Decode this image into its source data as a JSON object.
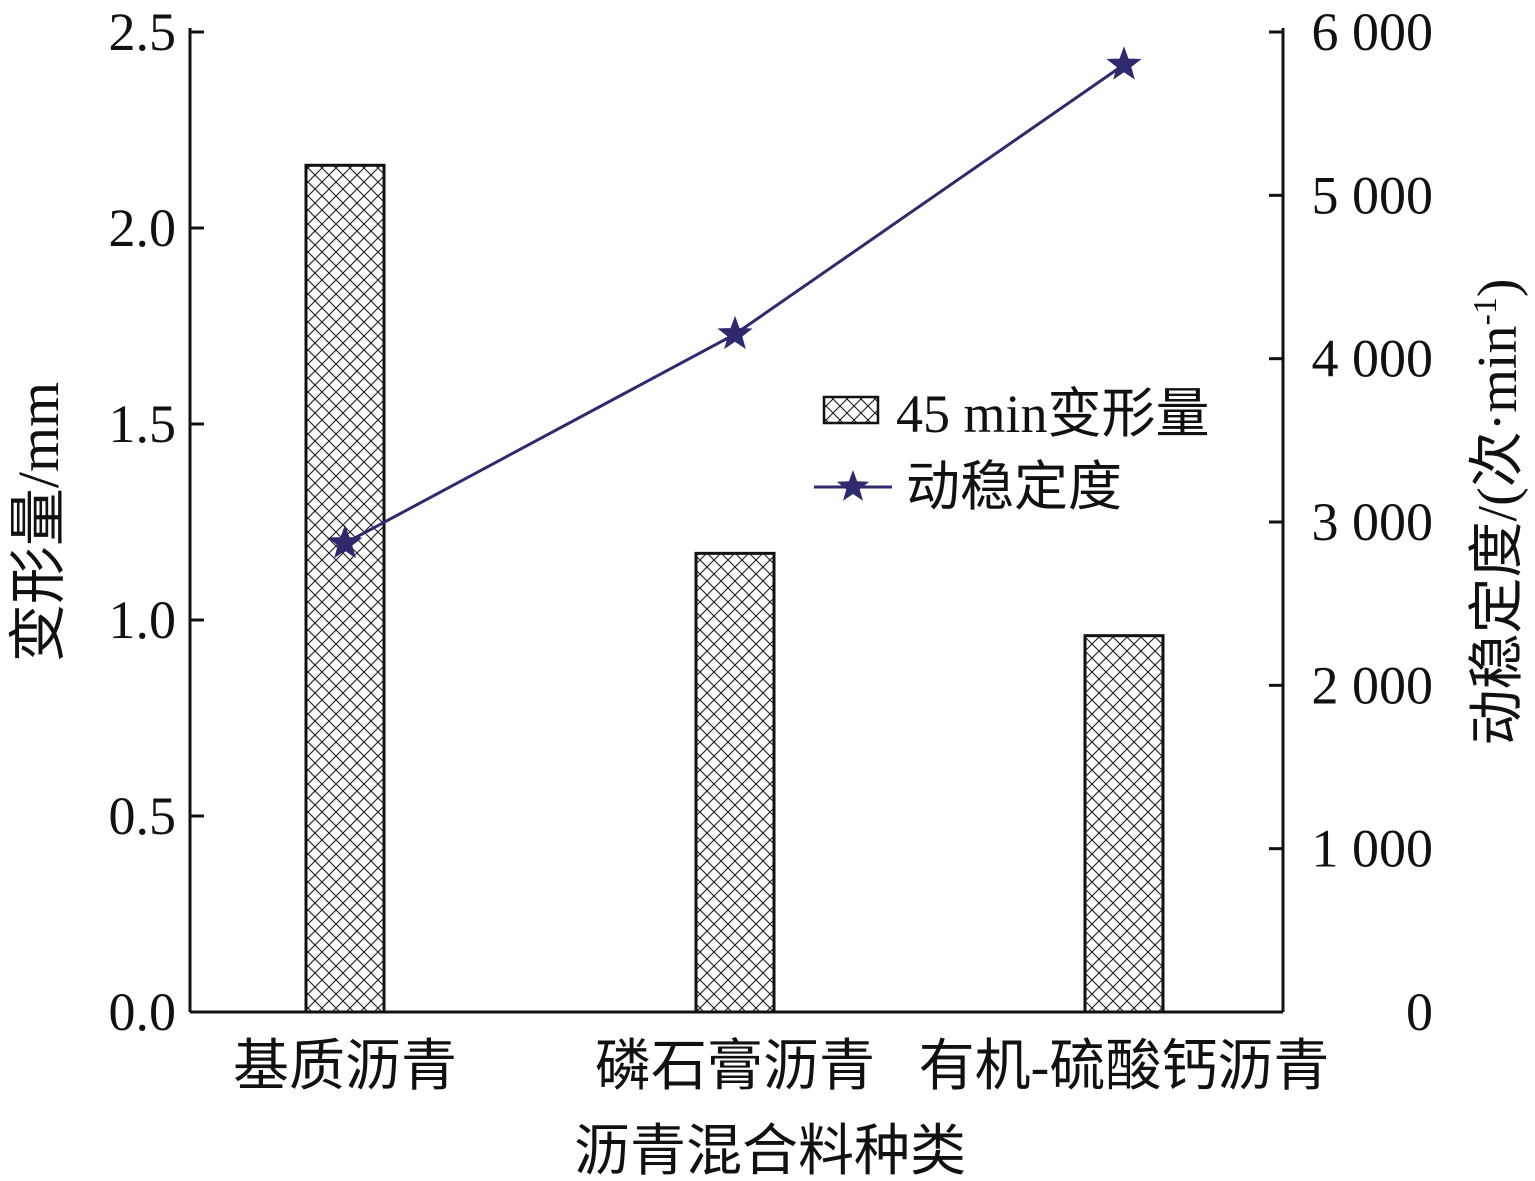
{
  "chart_data": {
    "type": "bar",
    "categories": [
      "基质沥青",
      "磷石膏沥青",
      "有机-硫酸钙沥青"
    ],
    "xlabel": "沥青混合料种类",
    "y_left": {
      "label": "变形量/mm",
      "range": [
        0,
        2.5
      ],
      "ticks": [
        "0.0",
        "0.5",
        "1.0",
        "1.5",
        "2.0",
        "2.5"
      ],
      "tick_values": [
        0,
        0.5,
        1.0,
        1.5,
        2.0,
        2.5
      ]
    },
    "y_right": {
      "label_main": "动稳定度/(次·min",
      "label_sup": "-1",
      "label_close": ")",
      "range": [
        0,
        6000
      ],
      "ticks": [
        "0",
        "1 000",
        "2 000",
        "3 000",
        "4 000",
        "5 000",
        "6 000"
      ],
      "tick_values": [
        0,
        1000,
        2000,
        3000,
        4000,
        5000,
        6000
      ]
    },
    "series": [
      {
        "name": "45 min变形量",
        "type": "bar",
        "axis": "left",
        "values": [
          2.16,
          1.17,
          0.96
        ],
        "pattern": "crosshatch"
      },
      {
        "name": "动稳定度",
        "type": "line",
        "axis": "right",
        "marker": "star",
        "values": [
          2870,
          4150,
          5800
        ],
        "color": "#2e2a6e"
      }
    ],
    "legend": {
      "placement": "center-right",
      "items": [
        {
          "name": "45 min变形量",
          "symbol": "hatched-box"
        },
        {
          "name": "动稳定度",
          "symbol": "line-star"
        }
      ]
    },
    "grid": false
  }
}
